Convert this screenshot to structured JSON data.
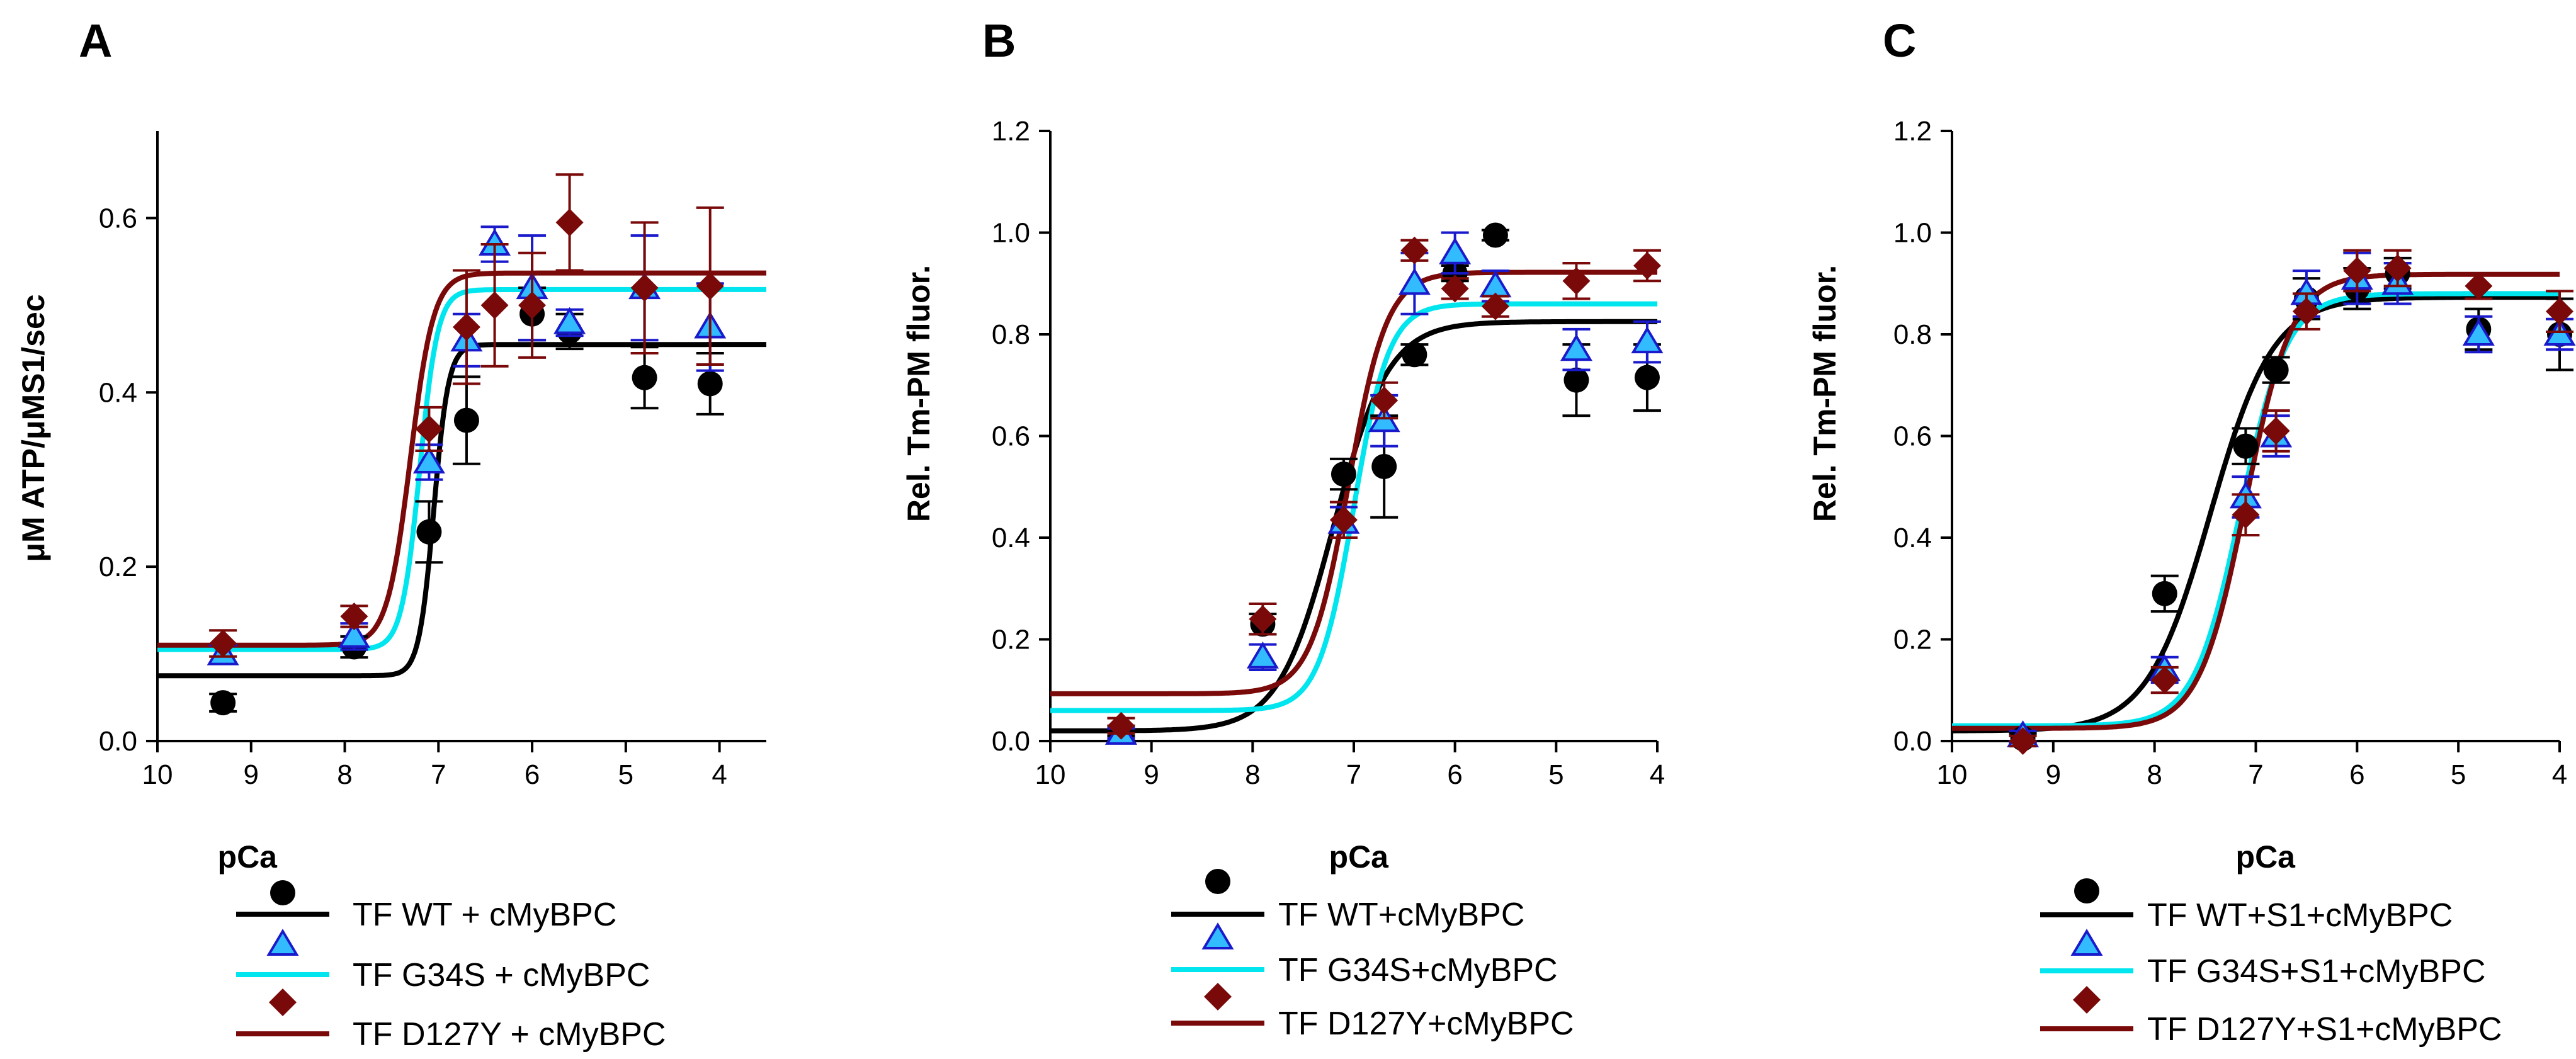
{
  "figure": {
    "panels": [
      "A",
      "B",
      "C"
    ]
  },
  "colors": {
    "WT": "#000000",
    "G34S": "#00e5ee",
    "G34S_marker": "#33bbff",
    "G34S_errbar": "#1a1acc",
    "D127Y": "#7a0a0a",
    "axis": "#000000"
  },
  "chart_data": [
    {
      "panel": "A",
      "type": "scatter",
      "xlabel": "pCa",
      "ylabel": "μM ATP/μMS1/sec",
      "xlim": [
        10,
        3.5
      ],
      "ylim": [
        0,
        0.7
      ],
      "xticks": [
        10,
        9,
        8,
        7,
        6,
        5,
        4
      ],
      "xtick_labels": [
        "10",
        "9",
        "8",
        "7",
        "6",
        "5",
        "4"
      ],
      "yticks": [
        0,
        0.2,
        0.4,
        0.6
      ],
      "ytick_labels": [
        "0.0",
        "0.2",
        "0.4",
        "0.6"
      ],
      "series": [
        {
          "name": "TF WT + cMyBPC",
          "marker": "circle",
          "key": "WT",
          "points": [
            [
              9.3,
              0.044,
              0.01
            ],
            [
              7.9,
              0.108,
              0.012
            ],
            [
              7.1,
              0.24,
              0.035
            ],
            [
              6.7,
              0.368,
              0.05
            ],
            [
              6.0,
              0.49,
              0.03
            ],
            [
              5.6,
              0.47,
              0.02
            ],
            [
              4.8,
              0.417,
              0.035
            ],
            [
              4.1,
              0.41,
              0.035
            ]
          ],
          "fit": {
            "min": 0.075,
            "max": 0.455,
            "pca50": 7.05,
            "n": 5.5
          }
        },
        {
          "name": "TF G34S + cMyBPC",
          "marker": "triangle",
          "key": "G34S",
          "points": [
            [
              9.3,
              0.1,
              0.01
            ],
            [
              7.9,
              0.12,
              0.015
            ],
            [
              7.1,
              0.32,
              0.02
            ],
            [
              6.7,
              0.46,
              0.03
            ],
            [
              6.4,
              0.57,
              0.02
            ],
            [
              6.0,
              0.52,
              0.06
            ],
            [
              5.6,
              0.48,
              0.015
            ],
            [
              4.8,
              0.52,
              0.06
            ],
            [
              4.1,
              0.475,
              0.05
            ]
          ],
          "fit": {
            "min": 0.105,
            "max": 0.518,
            "pca50": 7.2,
            "n": 4.5
          }
        },
        {
          "name": "TF D127Y + cMyBPC",
          "marker": "diamond",
          "key": "D127Y",
          "points": [
            [
              9.3,
              0.112,
              0.015
            ],
            [
              7.9,
              0.143,
              0.012
            ],
            [
              7.1,
              0.358,
              0.025
            ],
            [
              6.7,
              0.475,
              0.065
            ],
            [
              6.4,
              0.5,
              0.07
            ],
            [
              6.0,
              0.5,
              0.06
            ],
            [
              5.6,
              0.595,
              0.055
            ],
            [
              4.8,
              0.52,
              0.075
            ],
            [
              4.1,
              0.522,
              0.09
            ]
          ],
          "fit": {
            "min": 0.11,
            "max": 0.537,
            "pca50": 7.3,
            "n": 3.5
          }
        }
      ]
    },
    {
      "panel": "B",
      "type": "scatter",
      "xlabel": "pCa",
      "ylabel": "Rel. Tm-PM fluor.",
      "xlim": [
        10,
        4
      ],
      "ylim": [
        0,
        1.2
      ],
      "xticks": [
        10,
        9,
        8,
        7,
        6,
        5,
        4
      ],
      "xtick_labels": [
        "10",
        "9",
        "8",
        "7",
        "6",
        "5",
        "4"
      ],
      "yticks": [
        0,
        0.2,
        0.4,
        0.6,
        0.8,
        1.0,
        1.2
      ],
      "ytick_labels": [
        "0.0",
        "0.2",
        "0.4",
        "0.6",
        "0.8",
        "1.0",
        "1.2"
      ],
      "series": [
        {
          "name": "TF WT+cMyBPC",
          "marker": "circle",
          "key": "WT",
          "points": [
            [
              9.3,
              0.02,
              0.01
            ],
            [
              7.9,
              0.23,
              0.02
            ],
            [
              7.1,
              0.525,
              0.03
            ],
            [
              6.7,
              0.54,
              0.1
            ],
            [
              6.4,
              0.76,
              0.02
            ],
            [
              6.0,
              0.92,
              0.015
            ],
            [
              5.6,
              0.995,
              0.01
            ],
            [
              4.8,
              0.71,
              0.07
            ],
            [
              4.1,
              0.715,
              0.065
            ]
          ],
          "fit": {
            "min": 0.02,
            "max": 0.825,
            "pca50": 7.2,
            "n": 1.6
          }
        },
        {
          "name": "TF G34S+cMyBPC",
          "marker": "triangle",
          "key": "G34S",
          "points": [
            [
              9.3,
              0.015,
              0.01
            ],
            [
              7.9,
              0.165,
              0.025
            ],
            [
              7.1,
              0.43,
              0.03
            ],
            [
              6.7,
              0.63,
              0.05
            ],
            [
              6.4,
              0.9,
              0.06
            ],
            [
              6.0,
              0.96,
              0.04
            ],
            [
              5.6,
              0.895,
              0.03
            ],
            [
              4.8,
              0.77,
              0.04
            ],
            [
              4.1,
              0.785,
              0.04
            ]
          ],
          "fit": {
            "min": 0.06,
            "max": 0.86,
            "pca50": 7.0,
            "n": 2.5
          }
        },
        {
          "name": "TF D127Y+cMyBPC",
          "marker": "diamond",
          "key": "D127Y",
          "points": [
            [
              9.3,
              0.03,
              0.015
            ],
            [
              7.9,
              0.24,
              0.03
            ],
            [
              7.1,
              0.435,
              0.035
            ],
            [
              6.7,
              0.67,
              0.035
            ],
            [
              6.4,
              0.965,
              0.02
            ],
            [
              6.0,
              0.89,
              0.02
            ],
            [
              5.6,
              0.855,
              0.02
            ],
            [
              4.8,
              0.905,
              0.035
            ],
            [
              4.1,
              0.935,
              0.03
            ]
          ],
          "fit": {
            "min": 0.093,
            "max": 0.922,
            "pca50": 7.05,
            "n": 2.3
          }
        }
      ]
    },
    {
      "panel": "C",
      "type": "scatter",
      "xlabel": "pCa",
      "ylabel": "Rel. Tm-PM fluor.",
      "xlim": [
        10,
        4
      ],
      "ylim": [
        0,
        1.2
      ],
      "xticks": [
        10,
        9,
        8,
        7,
        6,
        5,
        4
      ],
      "xtick_labels": [
        "10",
        "9",
        "8",
        "7",
        "6",
        "5",
        "4"
      ],
      "yticks": [
        0,
        0.2,
        0.4,
        0.6,
        0.8,
        1.0,
        1.2
      ],
      "ytick_labels": [
        "0.0",
        "0.2",
        "0.4",
        "0.6",
        "0.8",
        "1.0",
        "1.2"
      ],
      "series": [
        {
          "name": "TF WT+S1+cMyBPC",
          "marker": "circle",
          "key": "WT",
          "points": [
            [
              9.3,
              0.005,
              0.01
            ],
            [
              7.9,
              0.29,
              0.035
            ],
            [
              7.1,
              0.58,
              0.035
            ],
            [
              6.8,
              0.73,
              0.025
            ],
            [
              6.5,
              0.87,
              0.04
            ],
            [
              6.0,
              0.89,
              0.04
            ],
            [
              5.6,
              0.92,
              0.03
            ],
            [
              4.8,
              0.81,
              0.04
            ],
            [
              4.0,
              0.8,
              0.07
            ]
          ],
          "fit": {
            "min": 0.02,
            "max": 0.873,
            "pca50": 7.45,
            "n": 1.4
          }
        },
        {
          "name": "TF G34S+S1+cMyBPC",
          "marker": "triangle",
          "key": "G34S",
          "points": [
            [
              9.3,
              0.01,
              0.01
            ],
            [
              7.9,
              0.14,
              0.025
            ],
            [
              7.1,
              0.48,
              0.04
            ],
            [
              6.8,
              0.6,
              0.04
            ],
            [
              6.5,
              0.88,
              0.045
            ],
            [
              6.0,
              0.91,
              0.05
            ],
            [
              5.6,
              0.9,
              0.04
            ],
            [
              4.8,
              0.8,
              0.035
            ],
            [
              4.0,
              0.8,
              0.03
            ]
          ],
          "fit": {
            "min": 0.03,
            "max": 0.88,
            "pca50": 7.15,
            "n": 1.9
          }
        },
        {
          "name": "TF D127Y+S1+cMyBPC",
          "marker": "diamond",
          "key": "D127Y",
          "points": [
            [
              9.3,
              0.0,
              0.01
            ],
            [
              7.9,
              0.12,
              0.025
            ],
            [
              7.1,
              0.445,
              0.04
            ],
            [
              6.8,
              0.61,
              0.04
            ],
            [
              6.5,
              0.845,
              0.035
            ],
            [
              6.0,
              0.925,
              0.04
            ],
            [
              5.6,
              0.93,
              0.035
            ],
            [
              4.8,
              0.895,
              0.025
            ],
            [
              4.0,
              0.845,
              0.04
            ]
          ],
          "fit": {
            "min": 0.025,
            "max": 0.918,
            "pca50": 7.1,
            "n": 1.9
          }
        }
      ]
    }
  ]
}
